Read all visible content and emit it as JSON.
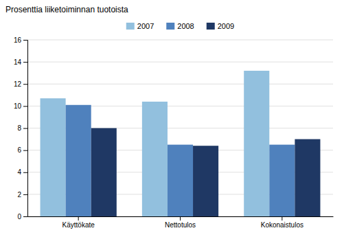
{
  "chart_data": {
    "type": "bar",
    "ylabel": "Prosenttia liiketoiminnan tuotoista",
    "categories": [
      "Käyttökate",
      "Nettotulos",
      "Kokonaistulos"
    ],
    "series": [
      {
        "name": "2007",
        "color": "#92c0de",
        "values": [
          10.7,
          10.4,
          13.2
        ]
      },
      {
        "name": "2008",
        "color": "#4f81bd",
        "values": [
          10.1,
          6.5,
          6.5
        ]
      },
      {
        "name": "2009",
        "color": "#1f3864",
        "values": [
          8.0,
          6.4,
          7.0
        ]
      }
    ],
    "ylim": [
      0,
      16
    ],
    "yticks": [
      0,
      2,
      4,
      6,
      8,
      10,
      12,
      14,
      16
    ],
    "grid": true,
    "legend": "top"
  }
}
